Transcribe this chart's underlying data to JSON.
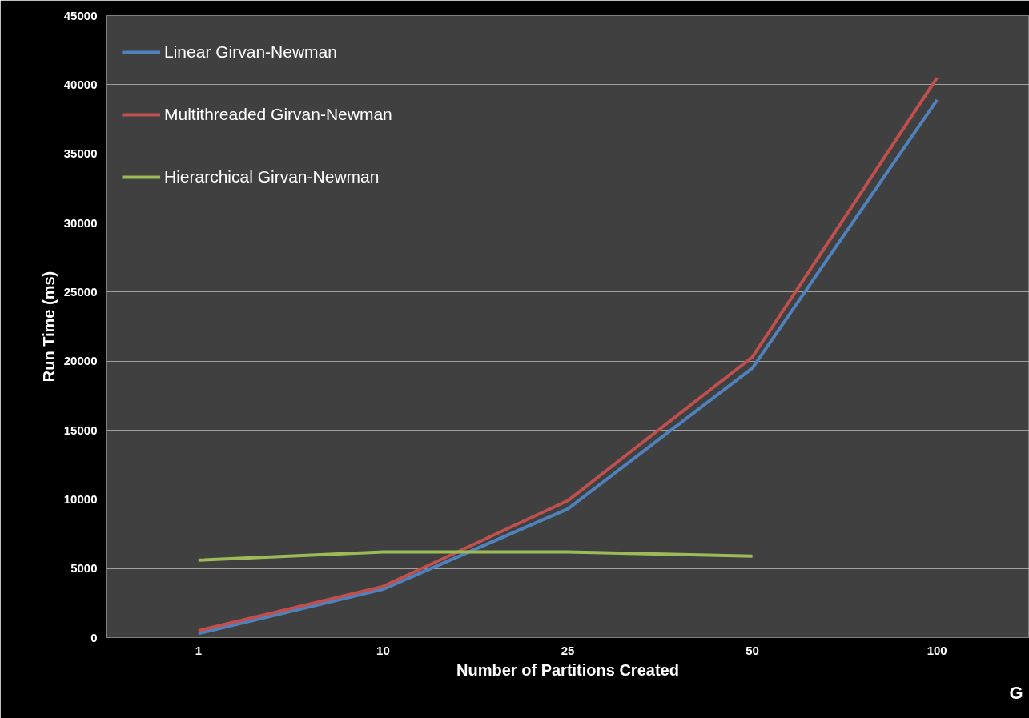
{
  "chart_data": {
    "type": "line",
    "xlabel": "Number of Partitions Created",
    "ylabel": "Run Time (ms)",
    "categories": [
      "1",
      "10",
      "25",
      "50",
      "100"
    ],
    "series": [
      {
        "name": "Linear Girvan-Newman",
        "color": "#4f81bd",
        "values": [
          300,
          3500,
          9300,
          19500,
          38900
        ]
      },
      {
        "name": "Multithreaded Girvan-Newman",
        "color": "#c0504d",
        "values": [
          500,
          3700,
          9900,
          20300,
          40500
        ]
      },
      {
        "name": "Hierarchical Girvan-Newman",
        "color": "#9bbb59",
        "values": [
          5600,
          6200,
          6200,
          5900,
          null
        ]
      }
    ],
    "ylim": [
      0,
      45000
    ],
    "yticks": [
      0,
      5000,
      10000,
      15000,
      20000,
      25000,
      30000,
      35000,
      40000,
      45000
    ],
    "grid": "y",
    "legend": "top left",
    "marker": "none",
    "line_style": "solid",
    "annotations": [
      "G"
    ]
  }
}
